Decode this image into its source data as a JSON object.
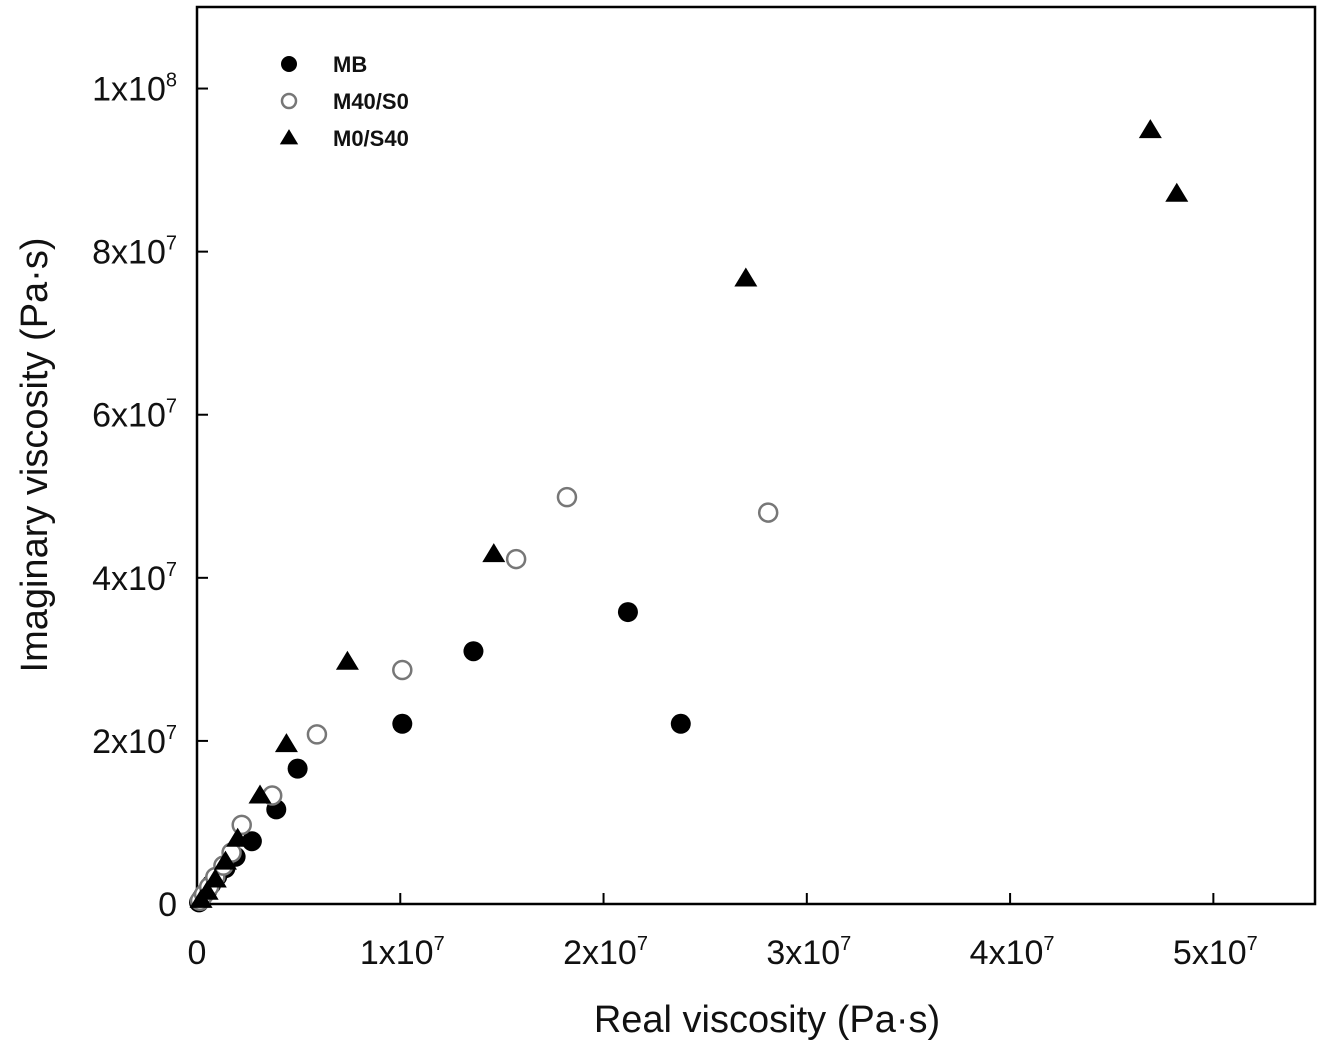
{
  "chart_data": {
    "type": "scatter",
    "title": "",
    "xlabel": "Real viscosity (Pa·s)",
    "ylabel": "Imaginary viscosity (Pa·s)",
    "xlim": [
      0,
      55000000
    ],
    "ylim": [
      0,
      110000000
    ],
    "grid": false,
    "legend_position": "top-left",
    "x_ticks": [
      {
        "value": 0,
        "mantissa": "0",
        "exp": ""
      },
      {
        "value": 10000000,
        "mantissa": "1x10",
        "exp": "7"
      },
      {
        "value": 20000000,
        "mantissa": "2x10",
        "exp": "7"
      },
      {
        "value": 30000000,
        "mantissa": "3x10",
        "exp": "7"
      },
      {
        "value": 40000000,
        "mantissa": "4x10",
        "exp": "7"
      },
      {
        "value": 50000000,
        "mantissa": "5x10",
        "exp": "7"
      }
    ],
    "y_ticks": [
      {
        "value": 0,
        "mantissa": "0",
        "exp": ""
      },
      {
        "value": 20000000,
        "mantissa": "2x10",
        "exp": "7"
      },
      {
        "value": 40000000,
        "mantissa": "4x10",
        "exp": "7"
      },
      {
        "value": 60000000,
        "mantissa": "6x10",
        "exp": "7"
      },
      {
        "value": 80000000,
        "mantissa": "8x10",
        "exp": "7"
      },
      {
        "value": 100000000,
        "mantissa": "1x10",
        "exp": "8"
      }
    ],
    "series": [
      {
        "name": "MB",
        "marker": "filled-circle",
        "color": "#000000",
        "points": [
          {
            "x": 100000,
            "y": 200000
          },
          {
            "x": 200000,
            "y": 600000
          },
          {
            "x": 300000,
            "y": 1000000
          },
          {
            "x": 500000,
            "y": 1600000
          },
          {
            "x": 700000,
            "y": 2400000
          },
          {
            "x": 1000000,
            "y": 3400000
          },
          {
            "x": 1400000,
            "y": 4400000
          },
          {
            "x": 1900000,
            "y": 5800000
          },
          {
            "x": 2700000,
            "y": 7700000
          },
          {
            "x": 3900000,
            "y": 11600000
          },
          {
            "x": 4950000,
            "y": 16600000
          },
          {
            "x": 10100000,
            "y": 22100000
          },
          {
            "x": 13600000,
            "y": 31000000
          },
          {
            "x": 21200000,
            "y": 35800000
          },
          {
            "x": 23800000,
            "y": 22100000
          }
        ]
      },
      {
        "name": "M40/S0",
        "marker": "open-circle",
        "color": "#777777",
        "points": [
          {
            "x": 150000,
            "y": 400000
          },
          {
            "x": 350000,
            "y": 1200000
          },
          {
            "x": 600000,
            "y": 2100000
          },
          {
            "x": 900000,
            "y": 3300000
          },
          {
            "x": 1300000,
            "y": 4700000
          },
          {
            "x": 1700000,
            "y": 6300000
          },
          {
            "x": 2200000,
            "y": 9700000
          },
          {
            "x": 3700000,
            "y": 13300000
          },
          {
            "x": 5900000,
            "y": 20800000
          },
          {
            "x": 10100000,
            "y": 28700000
          },
          {
            "x": 15700000,
            "y": 42300000
          },
          {
            "x": 18200000,
            "y": 49900000
          },
          {
            "x": 28100000,
            "y": 48000000
          }
        ]
      },
      {
        "name": "M0/S40",
        "marker": "filled-triangle",
        "color": "#000000",
        "points": [
          {
            "x": 200000,
            "y": 500000
          },
          {
            "x": 500000,
            "y": 1500000
          },
          {
            "x": 900000,
            "y": 3000000
          },
          {
            "x": 1400000,
            "y": 5200000
          },
          {
            "x": 2000000,
            "y": 8000000
          },
          {
            "x": 3100000,
            "y": 13300000
          },
          {
            "x": 4400000,
            "y": 19600000
          },
          {
            "x": 7400000,
            "y": 29700000
          },
          {
            "x": 14600000,
            "y": 42900000
          },
          {
            "x": 27000000,
            "y": 76700000
          },
          {
            "x": 46900000,
            "y": 94900000
          },
          {
            "x": 48200000,
            "y": 87100000
          }
        ]
      }
    ]
  }
}
